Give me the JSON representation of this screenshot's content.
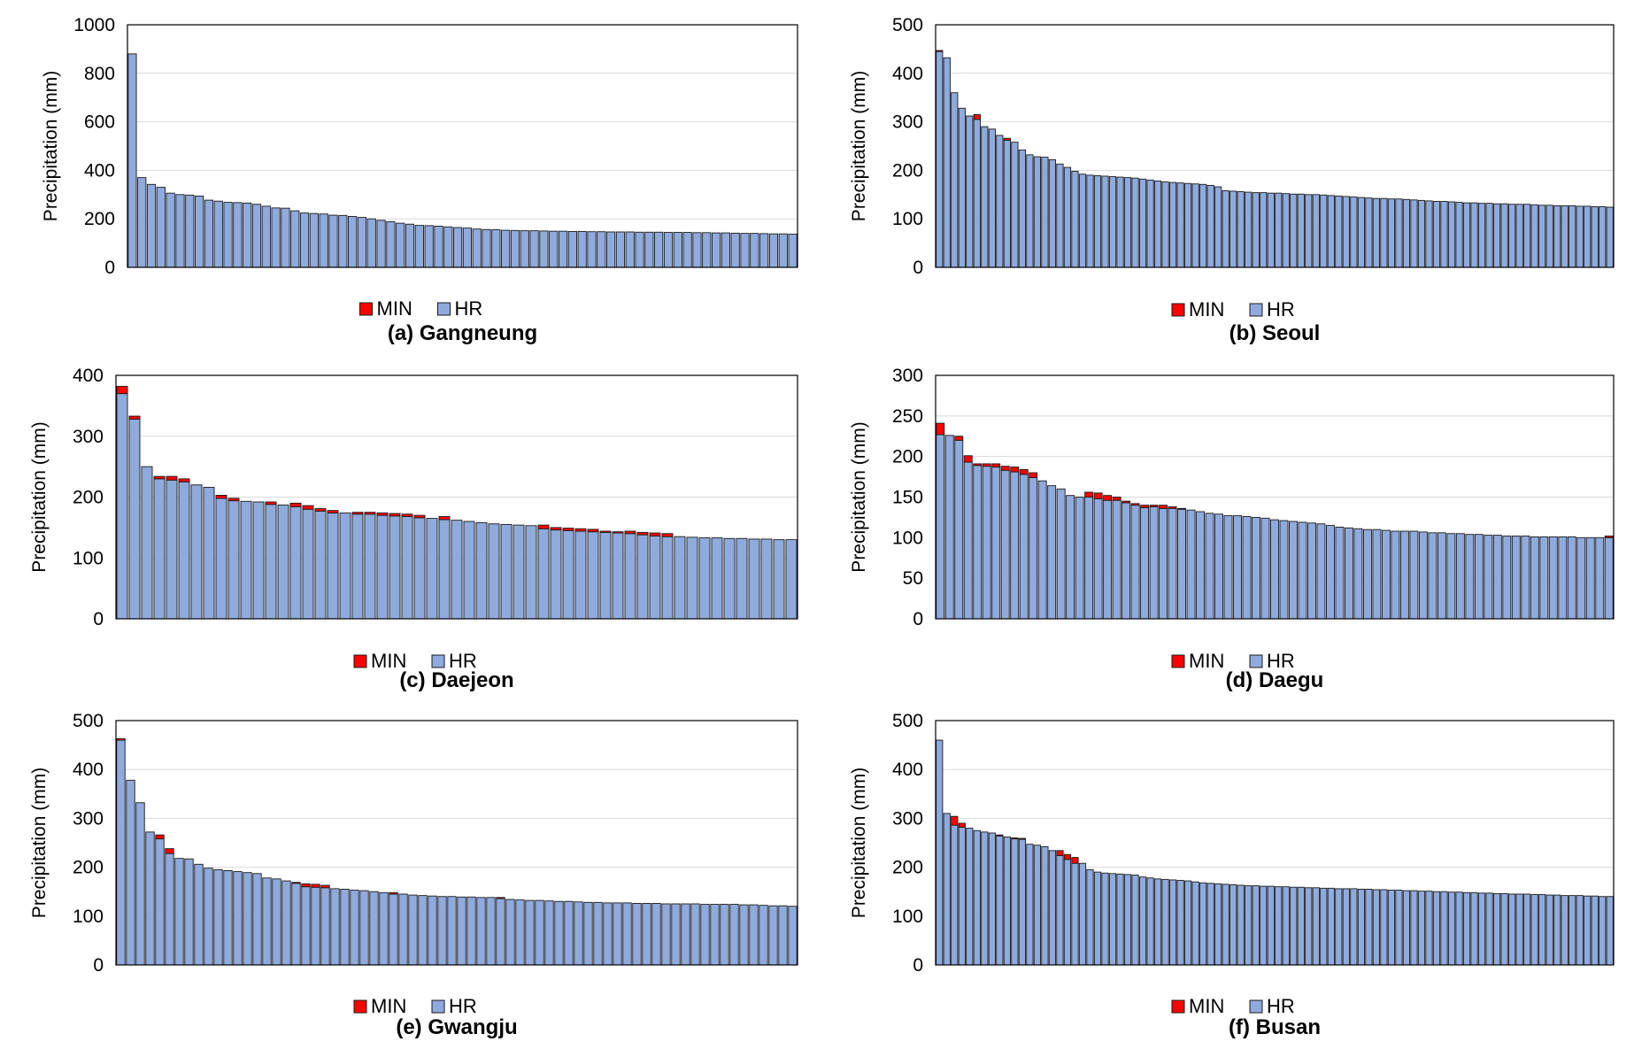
{
  "chart_data": [
    {
      "type": "bar",
      "stacked": true,
      "caption": "(a) Gangneung",
      "ylabel": "Precipitation (mm)",
      "xlabel": "",
      "ylim": [
        0,
        1000
      ],
      "yticks": [
        0,
        200,
        400,
        600,
        800,
        1000
      ],
      "grid": true,
      "legend_position": "bottom",
      "series": [
        {
          "name": "MIN",
          "color": "#ff0000",
          "values": [
            0,
            0,
            0,
            0,
            0,
            0,
            0,
            0,
            0,
            0,
            0,
            0,
            0,
            0,
            0,
            0,
            0,
            0,
            0,
            0,
            0,
            0,
            0,
            0,
            0,
            0,
            0,
            0,
            0,
            0,
            0,
            0,
            0,
            0,
            0,
            0,
            0,
            0,
            0,
            0,
            0,
            0,
            0,
            0,
            0,
            0,
            0,
            0,
            0,
            0,
            0,
            0,
            0,
            0,
            0,
            0,
            0,
            0,
            0,
            0,
            0,
            0,
            0,
            0,
            0,
            0,
            0,
            0,
            0,
            0
          ]
        },
        {
          "name": "HR",
          "color": "#8faadc",
          "values": [
            880,
            370,
            342,
            330,
            306,
            300,
            298,
            294,
            277,
            273,
            268,
            267,
            265,
            260,
            252,
            245,
            244,
            233,
            224,
            222,
            220,
            215,
            214,
            210,
            206,
            200,
            194,
            188,
            182,
            178,
            173,
            172,
            170,
            167,
            164,
            162,
            158,
            156,
            155,
            153,
            152,
            151,
            151,
            150,
            149,
            149,
            148,
            148,
            147,
            147,
            146,
            146,
            146,
            145,
            145,
            145,
            144,
            144,
            144,
            143,
            143,
            142,
            142,
            141,
            140,
            140,
            139,
            138,
            138,
            137
          ]
        }
      ],
      "min_markers": {
        "24": 6,
        "27": 10,
        "28": 8
      }
    },
    {
      "type": "bar",
      "stacked": true,
      "caption": "(b) Seoul",
      "ylabel": "Precipitation (mm)",
      "xlabel": "",
      "ylim": [
        0,
        500
      ],
      "yticks": [
        0,
        100,
        200,
        300,
        400,
        500
      ],
      "grid": true,
      "legend_position": "bottom",
      "series": [
        {
          "name": "MIN",
          "color": "#ff0000",
          "values": [
            2,
            0,
            0,
            0,
            0,
            10,
            0,
            0,
            0,
            4,
            0,
            0,
            0,
            0,
            0,
            0,
            0,
            0,
            0,
            0,
            0,
            0,
            0,
            0,
            0,
            0,
            0,
            0,
            0,
            0,
            0,
            0,
            0,
            0,
            0,
            0,
            0,
            0,
            0,
            0,
            0,
            0,
            0,
            0,
            0,
            0,
            0,
            0,
            0,
            0,
            0,
            0,
            0,
            0,
            0,
            0,
            0,
            0,
            0,
            0,
            0,
            0,
            0,
            0,
            0,
            0,
            0,
            0,
            0,
            0,
            0,
            0,
            0,
            0,
            0,
            0,
            0,
            0,
            0,
            0,
            0,
            0,
            0,
            0,
            0,
            0,
            0,
            0,
            0,
            0
          ]
        },
        {
          "name": "HR",
          "color": "#8faadc",
          "values": [
            445,
            432,
            360,
            328,
            312,
            305,
            290,
            285,
            272,
            262,
            258,
            242,
            232,
            228,
            227,
            222,
            213,
            206,
            198,
            192,
            190,
            189,
            188,
            187,
            186,
            185,
            184,
            182,
            180,
            178,
            176,
            175,
            174,
            173,
            172,
            171,
            169,
            166,
            158,
            157,
            156,
            155,
            154,
            154,
            153,
            153,
            152,
            151,
            151,
            150,
            150,
            149,
            148,
            147,
            146,
            145,
            144,
            143,
            142,
            142,
            141,
            141,
            140,
            139,
            138,
            137,
            136,
            136,
            135,
            134,
            133,
            133,
            132,
            132,
            131,
            131,
            130,
            130,
            130,
            129,
            128,
            128,
            127,
            127,
            127,
            126,
            126,
            125,
            125,
            124
          ]
        }
      ]
    },
    {
      "type": "bar",
      "stacked": true,
      "caption": "(c) Daejeon",
      "ylabel": "Precipitation (mm)",
      "xlabel": "",
      "ylim": [
        0,
        400
      ],
      "yticks": [
        0,
        100,
        200,
        300,
        400
      ],
      "grid": true,
      "legend_position": "bottom",
      "series": [
        {
          "name": "MIN",
          "color": "#ff0000",
          "values": [
            12,
            5,
            0,
            4,
            6,
            5,
            0,
            0,
            5,
            4,
            0,
            0,
            4,
            0,
            6,
            6,
            4,
            4,
            0,
            3,
            3,
            4,
            4,
            4,
            4,
            0,
            5,
            0,
            0,
            0,
            0,
            0,
            0,
            0,
            6,
            4,
            4,
            4,
            4,
            2,
            2,
            4,
            4,
            5,
            5,
            0,
            0,
            0,
            0,
            0,
            0,
            0,
            0,
            0,
            0
          ]
        },
        {
          "name": "HR",
          "color": "#8faadc",
          "values": [
            370,
            328,
            250,
            230,
            228,
            225,
            220,
            216,
            198,
            194,
            193,
            192,
            188,
            187,
            184,
            180,
            177,
            174,
            174,
            172,
            172,
            170,
            169,
            168,
            166,
            165,
            163,
            162,
            160,
            158,
            156,
            155,
            154,
            153,
            148,
            146,
            145,
            144,
            143,
            142,
            141,
            140,
            138,
            136,
            135,
            135,
            134,
            133,
            133,
            132,
            132,
            131,
            131,
            130,
            130
          ]
        }
      ]
    },
    {
      "type": "bar",
      "stacked": true,
      "caption": "(d) Daegu",
      "ylabel": "Precipitation (mm)",
      "xlabel": "",
      "ylim": [
        0,
        300
      ],
      "yticks": [
        0,
        50,
        100,
        150,
        200,
        250,
        300
      ],
      "grid": true,
      "legend_position": "bottom",
      "series": [
        {
          "name": "MIN",
          "color": "#ff0000",
          "values": [
            14,
            0,
            5,
            8,
            2,
            3,
            4,
            5,
            6,
            6,
            6,
            0,
            0,
            0,
            0,
            0,
            6,
            7,
            6,
            4,
            2,
            2,
            3,
            2,
            4,
            2,
            1,
            0,
            0,
            0,
            0,
            0,
            0,
            0,
            0,
            0,
            0,
            0,
            0,
            0,
            0,
            0,
            0,
            0,
            0,
            0,
            0,
            0,
            0,
            0,
            0,
            0,
            0,
            0,
            0,
            0,
            0,
            0,
            0,
            0,
            0,
            0,
            0,
            0,
            0,
            0,
            0,
            0,
            0,
            0,
            0,
            0,
            2
          ]
        },
        {
          "name": "HR",
          "color": "#8faadc",
          "values": [
            227,
            226,
            220,
            193,
            189,
            188,
            187,
            183,
            181,
            178,
            174,
            170,
            164,
            160,
            152,
            150,
            150,
            148,
            146,
            146,
            143,
            140,
            137,
            138,
            136,
            136,
            135,
            134,
            132,
            130,
            129,
            127,
            127,
            126,
            125,
            124,
            122,
            121,
            120,
            119,
            118,
            117,
            115,
            113,
            112,
            111,
            110,
            110,
            109,
            108,
            108,
            108,
            107,
            106,
            106,
            105,
            105,
            104,
            104,
            103,
            103,
            102,
            102,
            102,
            101,
            101,
            101,
            101,
            101,
            100,
            100,
            100,
            100
          ]
        }
      ]
    },
    {
      "type": "bar",
      "stacked": true,
      "caption": "(e) Gwangju",
      "ylabel": "Precipitation (mm)",
      "xlabel": "",
      "ylim": [
        0,
        500
      ],
      "yticks": [
        0,
        100,
        200,
        300,
        400,
        500
      ],
      "grid": true,
      "legend_position": "bottom",
      "series": [
        {
          "name": "MIN",
          "color": "#ff0000",
          "values": [
            3,
            0,
            0,
            0,
            8,
            10,
            0,
            0,
            0,
            0,
            0,
            0,
            0,
            0,
            0,
            0,
            0,
            0,
            2,
            6,
            6,
            5,
            0,
            0,
            0,
            0,
            0,
            0,
            3,
            0,
            0,
            0,
            0,
            0,
            0,
            0,
            0,
            0,
            0,
            2,
            0,
            0,
            0,
            0,
            0,
            0,
            0,
            0,
            0,
            0,
            0,
            0,
            0,
            0,
            0,
            0,
            0,
            0,
            0,
            0,
            0,
            0,
            0,
            0,
            0,
            0,
            0,
            0,
            0,
            0
          ]
        },
        {
          "name": "HR",
          "color": "#8faadc",
          "values": [
            460,
            378,
            332,
            272,
            258,
            228,
            218,
            217,
            206,
            198,
            195,
            193,
            191,
            189,
            187,
            178,
            176,
            172,
            167,
            160,
            159,
            158,
            156,
            155,
            153,
            152,
            150,
            148,
            145,
            145,
            143,
            142,
            141,
            140,
            140,
            139,
            139,
            138,
            138,
            136,
            134,
            133,
            132,
            132,
            131,
            130,
            130,
            129,
            128,
            128,
            127,
            127,
            127,
            126,
            126,
            126,
            125,
            125,
            125,
            125,
            124,
            124,
            124,
            124,
            123,
            123,
            122,
            121,
            121,
            120
          ]
        }
      ]
    },
    {
      "type": "bar",
      "stacked": true,
      "caption": "(f) Busan",
      "ylabel": "Precipitation (mm)",
      "xlabel": "",
      "ylim": [
        0,
        500
      ],
      "yticks": [
        0,
        100,
        200,
        300,
        400,
        500
      ],
      "grid": true,
      "legend_position": "bottom",
      "series": [
        {
          "name": "MIN",
          "color": "#ff0000",
          "values": [
            0,
            0,
            18,
            8,
            0,
            0,
            0,
            0,
            2,
            0,
            2,
            2,
            0,
            0,
            0,
            0,
            10,
            10,
            12,
            0,
            0,
            0,
            0,
            0,
            0,
            0,
            0,
            0,
            0,
            0,
            0,
            0,
            0,
            0,
            0,
            0,
            0,
            0,
            0,
            0,
            0,
            0,
            0,
            0,
            0,
            0,
            0,
            0,
            0,
            0,
            0,
            0,
            0,
            0,
            0,
            0,
            0,
            0,
            0,
            0,
            0,
            0,
            0,
            0,
            0,
            0,
            0,
            0,
            0,
            0,
            0,
            0,
            0,
            0,
            0,
            0,
            0,
            0,
            0,
            0,
            0,
            0,
            0,
            0,
            0,
            0,
            0,
            0,
            0,
            0
          ]
        },
        {
          "name": "HR",
          "color": "#8faadc",
          "values": [
            460,
            310,
            286,
            282,
            280,
            275,
            272,
            270,
            264,
            262,
            258,
            257,
            247,
            245,
            242,
            234,
            224,
            216,
            208,
            208,
            195,
            190,
            188,
            187,
            186,
            185,
            184,
            180,
            178,
            176,
            175,
            174,
            173,
            172,
            170,
            168,
            167,
            166,
            165,
            164,
            163,
            162,
            162,
            161,
            161,
            160,
            160,
            159,
            159,
            158,
            158,
            157,
            157,
            156,
            156,
            156,
            155,
            155,
            154,
            154,
            153,
            153,
            152,
            152,
            151,
            151,
            150,
            150,
            149,
            149,
            148,
            148,
            147,
            147,
            146,
            146,
            145,
            145,
            145,
            144,
            144,
            143,
            143,
            142,
            142,
            142,
            141,
            141,
            140,
            140
          ]
        }
      ]
    }
  ],
  "legend_labels": {
    "min": "MIN",
    "hr": "HR"
  }
}
